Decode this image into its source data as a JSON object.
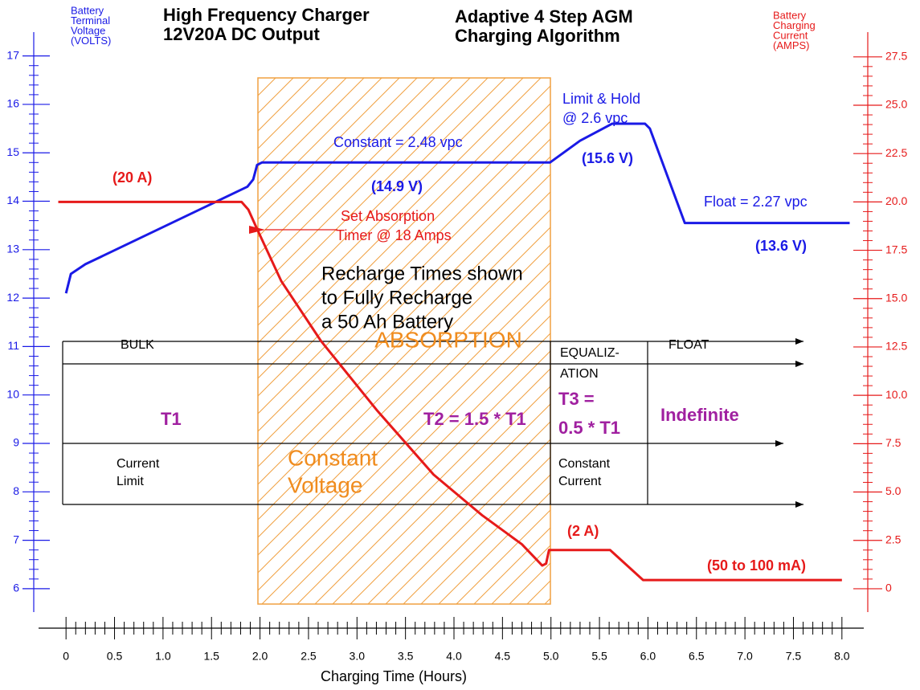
{
  "chart_data": {
    "type": "line",
    "title": [
      "High Frequency Charger",
      "12V20A DC Output"
    ],
    "subtitle": [
      "Adaptive 4 Step AGM",
      "Charging Algorithm"
    ],
    "ylabel": [
      "Battery",
      "Terminal",
      "Voltage",
      "(VOLTS)"
    ],
    "y2label": [
      "Battery",
      "Charging",
      "Current",
      "(AMPS)"
    ],
    "xlabel": "Charging Time (Hours)",
    "xlim": [
      -0.25,
      8.25
    ],
    "xticks": [
      0,
      0.5,
      {
        "value": 1,
        "label": "1.0"
      },
      1.5,
      {
        "value": 2,
        "label": "2.0"
      },
      2.5,
      {
        "value": 3,
        "label": "3.0"
      },
      3.5,
      {
        "value": 4,
        "label": "4.0"
      },
      4.5,
      {
        "value": 5,
        "label": "5.0"
      },
      5.5,
      {
        "value": 6,
        "label": "6.0"
      },
      6.5,
      {
        "value": 7,
        "label": "7.0"
      },
      7.5,
      {
        "value": 8,
        "label": "8.0"
      }
    ],
    "ylim": [
      5.6,
      17.5
    ],
    "yticks": [
      6,
      7,
      8,
      9,
      10,
      11,
      12,
      13,
      14,
      15,
      16,
      17
    ],
    "y2lim": [
      -1,
      28.8
    ],
    "y2ticks": [
      0,
      2.5,
      {
        "value": 5,
        "label": "5.0"
      },
      7.5,
      {
        "value": 10,
        "label": "10.0"
      },
      12.5,
      {
        "value": 15,
        "label": "15.0"
      },
      17.5,
      {
        "value": 20,
        "label": "20.0"
      },
      22.5,
      {
        "value": 25,
        "label": "25.0"
      },
      27.5
    ],
    "series": [
      {
        "color": "#1a1ae6",
        "x": [
          0,
          0.05,
          0.2,
          1.87,
          1.93,
          1.97,
          2.02,
          4.99,
          5.3,
          5.63,
          5.97,
          6.02,
          6.38,
          8.08
        ],
        "values": [
          12.1,
          12.5,
          12.7,
          14.3,
          14.45,
          14.75,
          14.8,
          14.8,
          15.25,
          15.6,
          15.6,
          15.5,
          13.55,
          13.55
        ]
      },
      {
        "color": "#e61a1a",
        "axis": "y2",
        "x": [
          -0.08,
          1.81,
          1.88,
          1.97,
          2.22,
          2.63,
          3.21,
          3.79,
          4.29,
          4.7,
          4.91,
          4.95,
          4.98,
          5.61,
          5.95,
          8.0
        ],
        "values": [
          20,
          20,
          19.6,
          18.6,
          15.9,
          12.8,
          9.2,
          5.9,
          3.8,
          2.3,
          1.2,
          1.3,
          2.0,
          2.0,
          0.45,
          0.45
        ]
      }
    ],
    "annotations": [
      [
        "Limit & Hold",
        "@ 2.6 vpc"
      ],
      [
        "Constant = 2.48 vpc"
      ],
      [
        "(14.9 V)"
      ],
      [
        "(15.6 V)"
      ],
      [
        "Float = 2.27 vpc"
      ],
      [
        "(13.6 V)"
      ],
      [
        "(20 A)"
      ],
      [
        "Set Absorption",
        "Timer @ 18 Amps"
      ],
      [
        "Recharge Times shown",
        "to Fully Recharge",
        "a 50 Ah Battery"
      ],
      [
        "(2 A)"
      ],
      [
        "(50 to 100 mA)"
      ]
    ],
    "phases": [
      {
        "name": [
          "BULK"
        ],
        "duration": [
          "T1"
        ],
        "mode": [
          "Current",
          "Limit"
        ]
      },
      {
        "name": [
          "ABSORPTION"
        ],
        "duration": [
          "T2 = 1.5 * T1"
        ],
        "mode": [
          "Constant",
          "Voltage"
        ]
      },
      {
        "name": [
          "EQUALIZ-",
          "ATION"
        ],
        "duration": [
          "T3 =",
          "0.5 * T1"
        ],
        "mode": [
          "Constant",
          "Current"
        ]
      },
      {
        "name": [
          "FLOAT"
        ],
        "duration": [
          "Indefinite"
        ]
      }
    ]
  }
}
